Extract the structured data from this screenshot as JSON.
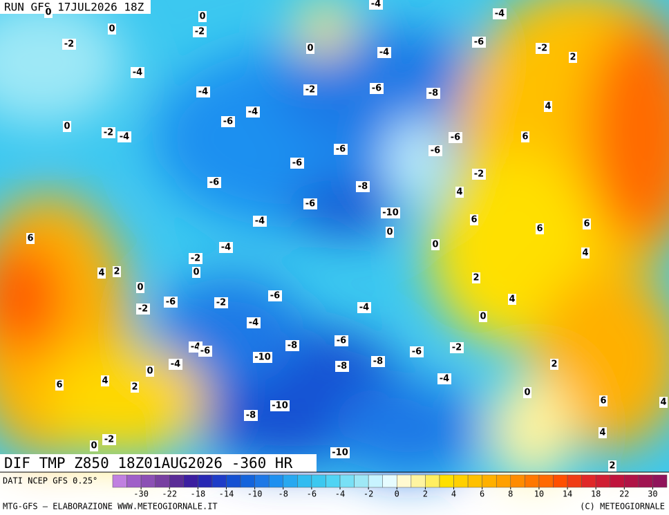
{
  "header": {
    "run": "RUN GFS 17JUL2026 18Z",
    "field": "DIF TMP Z850 18Z01AUG2026 -360 HR"
  },
  "contour_labels": [
    0,
    0,
    0,
    -2,
    -2,
    0,
    -4,
    -6,
    -2,
    2,
    -4,
    -4,
    -4,
    -4,
    -2,
    -6,
    -8,
    -4,
    -6,
    0,
    -2,
    -4,
    4,
    6,
    -6,
    -6,
    -6,
    -6,
    -2,
    -6,
    -8,
    4,
    -6,
    -10,
    -4,
    6,
    6,
    6,
    6,
    -4,
    0,
    0,
    -2,
    4,
    4,
    2,
    0,
    0,
    2,
    -6,
    -2,
    -6,
    -2,
    4,
    -4,
    0,
    -4,
    -8,
    -6,
    -4,
    -6,
    -6,
    -2,
    -10,
    -8,
    -8,
    -4,
    2,
    0,
    4,
    -4,
    2,
    6,
    0,
    6,
    -10,
    -8,
    4,
    4,
    -2,
    0,
    -10,
    2
  ],
  "legend": {
    "source": "DATI NCEP GFS 0.25°",
    "ticks": [
      -30,
      -22,
      -18,
      -14,
      -10,
      -8,
      -6,
      -4,
      -2,
      0,
      2,
      4,
      6,
      8,
      10,
      14,
      18,
      22,
      30
    ]
  },
  "footer": {
    "left": "MTG-GFS — ELABORAZIONE WWW.METEOGIORNALE.IT",
    "right": "(C) METEOGIORNALE"
  }
}
